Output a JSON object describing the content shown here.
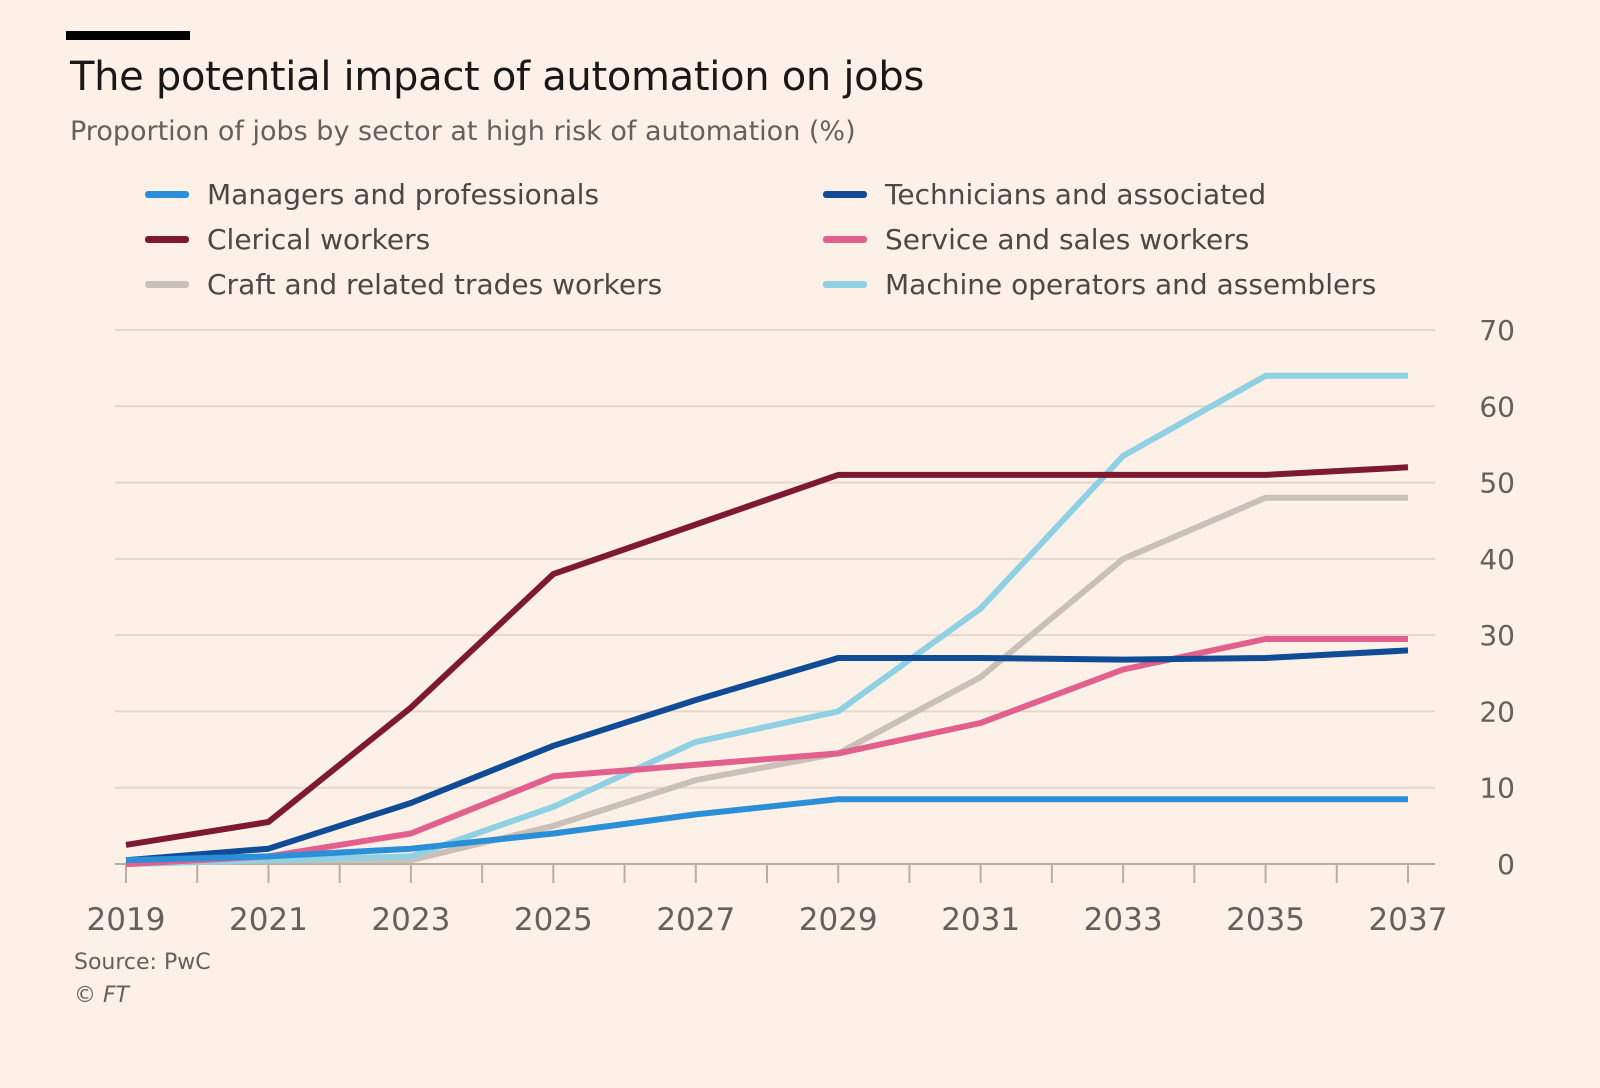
{
  "header": {
    "title": "The potential impact of automation on jobs",
    "subtitle": "Proportion of jobs by sector at high risk of automation (%)"
  },
  "footer": {
    "source": "Source: PwC",
    "credit": "© FT"
  },
  "chart_data": {
    "type": "line",
    "title": "The potential impact of automation on jobs",
    "subtitle": "Proportion of jobs by sector at high risk of automation (%)",
    "xlabel": "",
    "ylabel": "",
    "x": [
      2019,
      2021,
      2023,
      2025,
      2027,
      2029,
      2031,
      2033,
      2035,
      2037
    ],
    "x_ticks": [
      "2019",
      "2021",
      "2023",
      "2025",
      "2027",
      "2029",
      "2031",
      "2033",
      "2035",
      "2037"
    ],
    "xlim": [
      2019,
      2037
    ],
    "ylim": [
      0,
      70
    ],
    "y_ticks": [
      "0",
      "10",
      "20",
      "30",
      "40",
      "50",
      "60",
      "70"
    ],
    "y_axis_side": "right",
    "grid": true,
    "legend_position": "top",
    "series": [
      {
        "name": "Managers and professionals",
        "color": "#2a8fd6",
        "values": [
          0.5,
          1.0,
          2.0,
          4.0,
          6.5,
          8.5,
          8.5,
          8.5,
          8.5,
          8.5
        ]
      },
      {
        "name": "Technicians and associated",
        "color": "#0f4c95",
        "values": [
          0.5,
          2.0,
          8.0,
          15.5,
          21.5,
          27.0,
          27.0,
          26.8,
          27.0,
          28.0
        ]
      },
      {
        "name": "Clerical workers",
        "color": "#7d1a32",
        "values": [
          2.5,
          5.5,
          20.5,
          38.0,
          44.5,
          51.0,
          51.0,
          51.0,
          51.0,
          52.0
        ]
      },
      {
        "name": "Service and sales workers",
        "color": "#e2608e",
        "values": [
          0.0,
          1.0,
          4.0,
          11.5,
          13.0,
          14.5,
          18.5,
          25.5,
          29.5,
          29.5
        ]
      },
      {
        "name": "Craft and related trades workers",
        "color": "#c9c0b7",
        "values": [
          0.0,
          0.5,
          0.5,
          5.0,
          11.0,
          14.5,
          24.5,
          40.0,
          48.0,
          48.0
        ]
      },
      {
        "name": "Machine operators and assemblers",
        "color": "#8fd0e3",
        "values": [
          0.0,
          0.5,
          1.0,
          7.5,
          16.0,
          20.0,
          33.5,
          53.5,
          64.0,
          64.0
        ]
      }
    ]
  }
}
